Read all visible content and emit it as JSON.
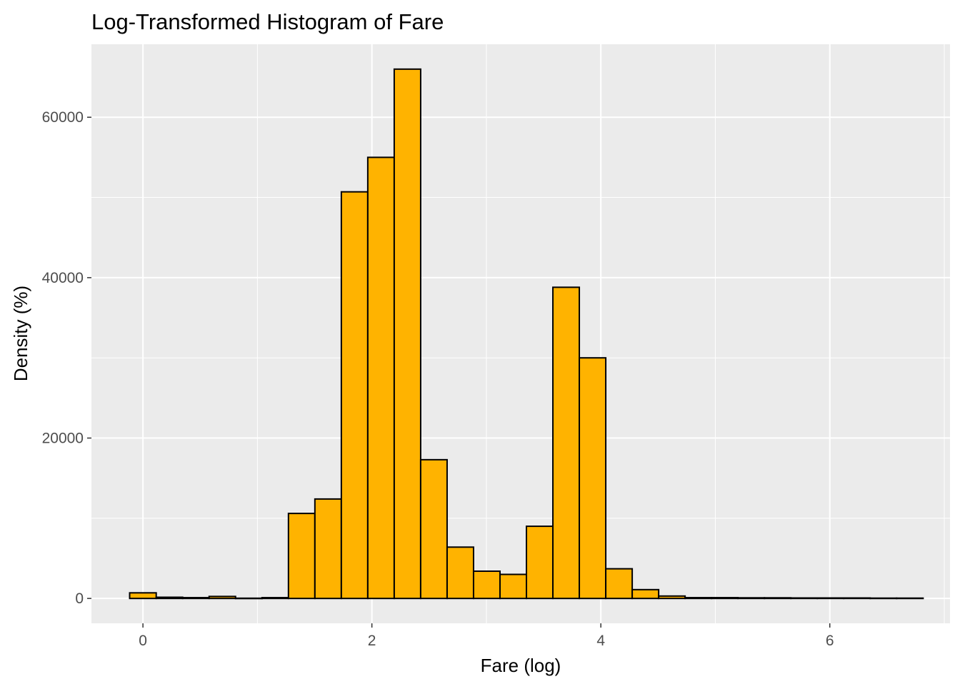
{
  "chart_data": {
    "type": "bar",
    "title": "Log-Transformed Histogram of Fare",
    "xlabel": "Fare (log)",
    "ylabel": "Density (%)",
    "xlim": [
      -0.45,
      7.05
    ],
    "ylim": [
      -3100,
      69100
    ],
    "x_ticks": [
      0,
      2,
      4,
      6
    ],
    "x_tick_labels": [
      "0",
      "2",
      "4",
      "6"
    ],
    "y_ticks": [
      0,
      20000,
      40000,
      60000
    ],
    "y_tick_labels": [
      "0",
      "20000",
      "40000",
      "60000"
    ],
    "bin_edges": [
      -0.116,
      0.116,
      0.347,
      0.578,
      0.809,
      1.04,
      1.271,
      1.502,
      1.733,
      1.964,
      2.195,
      2.426,
      2.657,
      2.888,
      3.119,
      3.35,
      3.581,
      3.812,
      4.043,
      4.274,
      4.505,
      4.736,
      4.967,
      5.198,
      5.429,
      5.66,
      5.891,
      6.122,
      6.353,
      6.584,
      6.815
    ],
    "values": [
      700,
      150,
      100,
      250,
      30,
      100,
      10600,
      12400,
      50700,
      55000,
      66000,
      17300,
      6400,
      3400,
      3000,
      9000,
      38800,
      30000,
      3700,
      1100,
      300,
      100,
      100,
      80,
      80,
      60,
      60,
      60,
      40,
      40
    ],
    "fill_color": "#FFB300",
    "stroke_color": "#000000",
    "panel_background": "#EBEBEB",
    "grid_color": "#FFFFFF",
    "grid": true,
    "legend": "none"
  }
}
